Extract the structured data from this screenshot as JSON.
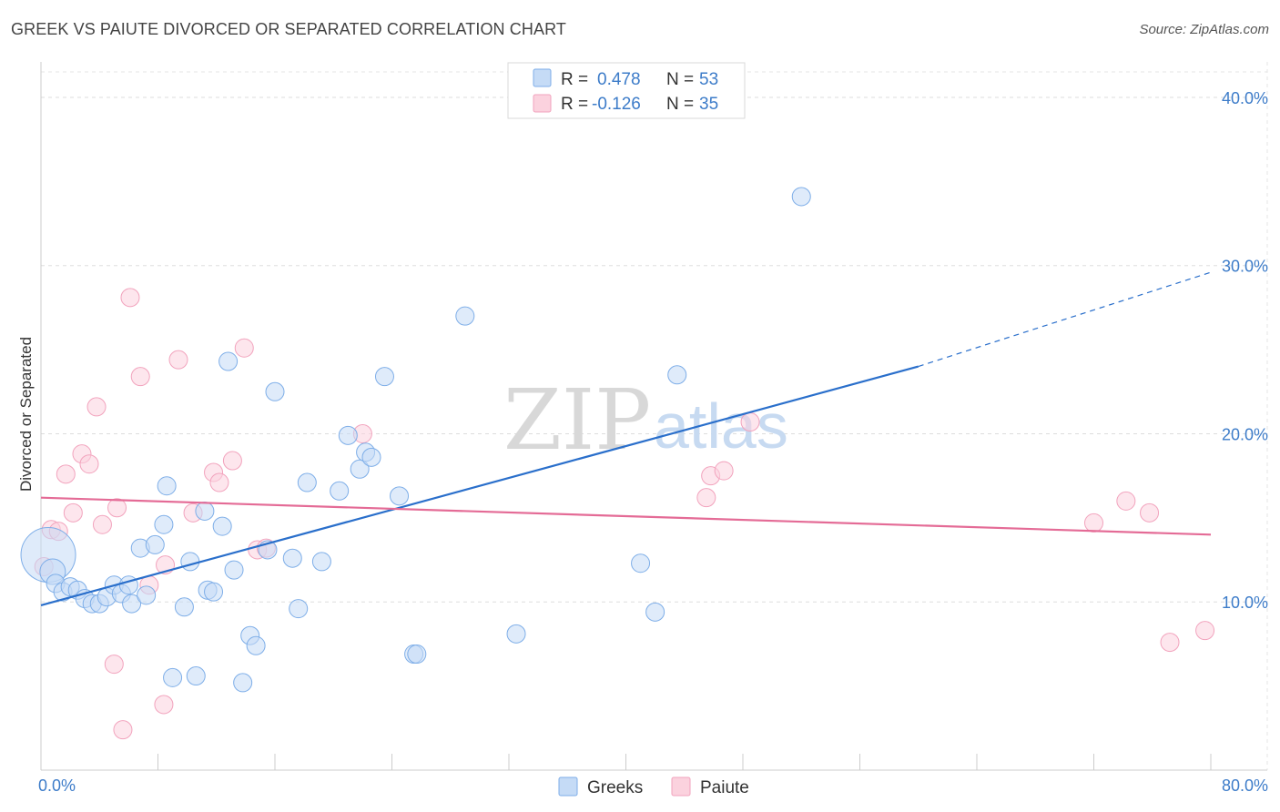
{
  "title": "GREEK VS PAIUTE DIVORCED OR SEPARATED CORRELATION CHART",
  "source": "Source: ZipAtlas.com",
  "watermark": {
    "zip": "ZIP",
    "atlas": "atlas"
  },
  "colors": {
    "greeks": "#7eaee8",
    "greeks_line": "#2a6fcb",
    "paiute": "#f2a3bd",
    "paiute_line": "#e46b96",
    "grid": "#dddddd",
    "axis_text": "#3d7cc9"
  },
  "chart_data": {
    "type": "scatter",
    "title": "GREEK VS PAIUTE DIVORCED OR SEPARATED CORRELATION CHART",
    "xlabel": "",
    "ylabel": "Divorced or Separated",
    "xlim": [
      0,
      80
    ],
    "ylim": [
      0,
      42
    ],
    "x_tick_labels": [
      {
        "value": 0,
        "label": "0.0%"
      },
      {
        "value": 80,
        "label": "80.0%"
      }
    ],
    "y_ticks": [
      {
        "value": 10,
        "label": "10.0%"
      },
      {
        "value": 20,
        "label": "20.0%"
      },
      {
        "value": 30,
        "label": "30.0%"
      },
      {
        "value": 40,
        "label": "40.0%"
      }
    ],
    "grid": true,
    "legend_placement": "top-center",
    "stats": [
      {
        "r_label": "R =",
        "r": "0.478",
        "n_label": "N =",
        "n": "53"
      },
      {
        "r_label": "R =",
        "r": "-0.126",
        "n_label": "N =",
        "n": "35"
      }
    ],
    "series": [
      {
        "name": "Greeks",
        "color": "#7eaee8",
        "trend": {
          "x0": 0,
          "y0": 9.8,
          "x1": 60,
          "y1": 24.0,
          "dash_to_x": 80,
          "dash_to_y": 29.6
        },
        "points": [
          [
            0.5,
            12.8
          ],
          [
            0.8,
            11.8
          ],
          [
            1.0,
            11.1
          ],
          [
            1.5,
            10.6
          ],
          [
            2.0,
            10.9
          ],
          [
            2.5,
            10.7
          ],
          [
            3.0,
            10.2
          ],
          [
            3.5,
            9.9
          ],
          [
            4.0,
            9.9
          ],
          [
            4.5,
            10.3
          ],
          [
            5.0,
            11.0
          ],
          [
            5.5,
            10.5
          ],
          [
            6.0,
            11.0
          ],
          [
            6.2,
            9.9
          ],
          [
            6.8,
            13.2
          ],
          [
            7.2,
            10.4
          ],
          [
            7.8,
            13.4
          ],
          [
            8.4,
            14.6
          ],
          [
            8.6,
            16.9
          ],
          [
            9.0,
            5.5
          ],
          [
            9.8,
            9.7
          ],
          [
            10.2,
            12.4
          ],
          [
            10.6,
            5.6
          ],
          [
            11.2,
            15.4
          ],
          [
            11.4,
            10.7
          ],
          [
            11.8,
            10.6
          ],
          [
            12.4,
            14.5
          ],
          [
            12.8,
            24.3
          ],
          [
            13.2,
            11.9
          ],
          [
            13.8,
            5.2
          ],
          [
            14.3,
            8.0
          ],
          [
            14.7,
            7.4
          ],
          [
            15.5,
            13.1
          ],
          [
            16.0,
            22.5
          ],
          [
            17.2,
            12.6
          ],
          [
            17.6,
            9.6
          ],
          [
            18.2,
            17.1
          ],
          [
            19.2,
            12.4
          ],
          [
            20.4,
            16.6
          ],
          [
            21.0,
            19.9
          ],
          [
            21.8,
            17.9
          ],
          [
            22.2,
            18.9
          ],
          [
            22.6,
            18.6
          ],
          [
            23.5,
            23.4
          ],
          [
            24.5,
            16.3
          ],
          [
            25.5,
            6.9
          ],
          [
            25.7,
            6.9
          ],
          [
            29.0,
            27.0
          ],
          [
            32.5,
            8.1
          ],
          [
            41.0,
            12.3
          ],
          [
            42.0,
            9.4
          ],
          [
            43.5,
            23.5
          ],
          [
            52.0,
            34.1
          ]
        ],
        "sizes": [
          30,
          14,
          10,
          10,
          10,
          10,
          10,
          10,
          10,
          10,
          10,
          10,
          10,
          10,
          10,
          10,
          10,
          10,
          10,
          10,
          10,
          10,
          10,
          10,
          10,
          10,
          10,
          10,
          10,
          10,
          10,
          10,
          10,
          10,
          10,
          10,
          10,
          10,
          10,
          10,
          10,
          10,
          10,
          10,
          10,
          10,
          10,
          10,
          10,
          10,
          10,
          10,
          10
        ]
      },
      {
        "name": "Paiute",
        "color": "#f2a3bd",
        "trend": {
          "x0": 0,
          "y0": 16.2,
          "x1": 80,
          "y1": 14.0
        },
        "points": [
          [
            0.2,
            12.1
          ],
          [
            0.7,
            14.3
          ],
          [
            1.2,
            14.2
          ],
          [
            1.7,
            17.6
          ],
          [
            2.2,
            15.3
          ],
          [
            2.8,
            18.8
          ],
          [
            3.3,
            18.2
          ],
          [
            3.8,
            21.6
          ],
          [
            4.2,
            14.6
          ],
          [
            5.0,
            6.3
          ],
          [
            5.2,
            15.6
          ],
          [
            5.6,
            2.4
          ],
          [
            6.1,
            28.1
          ],
          [
            6.8,
            23.4
          ],
          [
            7.4,
            11.0
          ],
          [
            8.4,
            3.9
          ],
          [
            8.5,
            12.2
          ],
          [
            9.4,
            24.4
          ],
          [
            10.4,
            15.3
          ],
          [
            11.8,
            17.7
          ],
          [
            12.2,
            17.1
          ],
          [
            13.1,
            18.4
          ],
          [
            13.9,
            25.1
          ],
          [
            14.8,
            13.1
          ],
          [
            15.4,
            13.2
          ],
          [
            22.0,
            20.0
          ],
          [
            45.5,
            16.2
          ],
          [
            45.8,
            17.5
          ],
          [
            46.7,
            17.8
          ],
          [
            48.5,
            20.7
          ],
          [
            72.0,
            14.7
          ],
          [
            74.2,
            16.0
          ],
          [
            75.8,
            15.3
          ],
          [
            77.2,
            7.6
          ],
          [
            79.6,
            8.3
          ]
        ],
        "sizes": [
          10,
          10,
          10,
          10,
          10,
          10,
          10,
          10,
          10,
          10,
          10,
          10,
          10,
          10,
          10,
          10,
          10,
          10,
          10,
          10,
          10,
          10,
          10,
          10,
          10,
          10,
          10,
          10,
          10,
          10,
          10,
          10,
          10,
          10,
          10
        ]
      }
    ]
  }
}
